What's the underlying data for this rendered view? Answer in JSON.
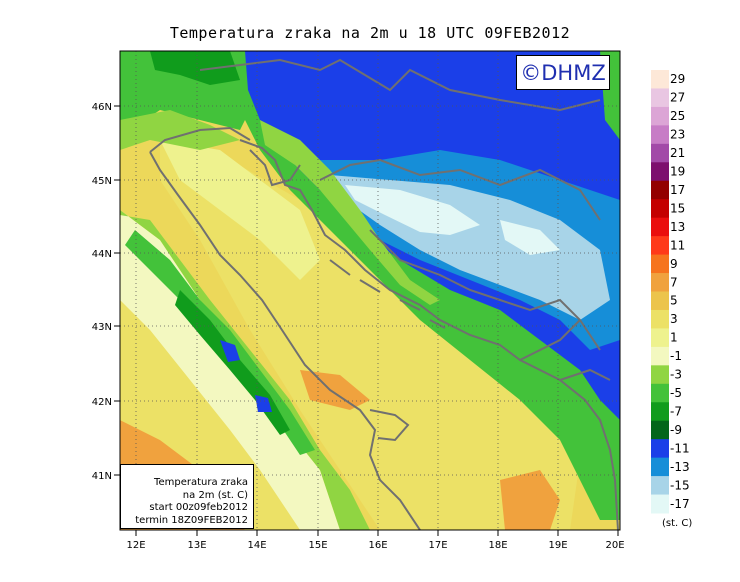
{
  "title": "Temperatura zraka na 2m u 18 UTC 09FEB2012",
  "logo": "©DHMZ",
  "info": {
    "line1": "Temperatura zraka",
    "line2": "na 2m (st. C)",
    "line3": "start 00z09feb2012",
    "line4": "termin 18Z09FEB2012"
  },
  "axes": {
    "lat_labels": [
      "46N",
      "45N",
      "44N",
      "43N",
      "42N",
      "41N"
    ],
    "lon_labels": [
      "12E",
      "13E",
      "14E",
      "15E",
      "16E",
      "17E",
      "18E",
      "19E",
      "20E"
    ]
  },
  "legend": {
    "units": "(st. C)",
    "labels": [
      "29",
      "27",
      "25",
      "23",
      "21",
      "19",
      "17",
      "15",
      "13",
      "11",
      "9",
      "7",
      "5",
      "3",
      "1",
      "-1",
      "-3",
      "-5",
      "-7",
      "-9",
      "-11",
      "-13",
      "-15",
      "-17"
    ],
    "colors": [
      "#fde8d8",
      "#e9c6e2",
      "#dca5d6",
      "#c77cc6",
      "#a24aa8",
      "#7d0f6e",
      "#930000",
      "#c40000",
      "#ea0e0e",
      "#ff3a1a",
      "#f6741e",
      "#f0a23e",
      "#ecc44c",
      "#ece166",
      "#eef28e",
      "#f3f8c0",
      "#90d542",
      "#43c23a",
      "#109c1c",
      "#03661a",
      "#1b3fe8",
      "#168ed8",
      "#a8d4e8",
      "#e3f8f6"
    ]
  }
}
